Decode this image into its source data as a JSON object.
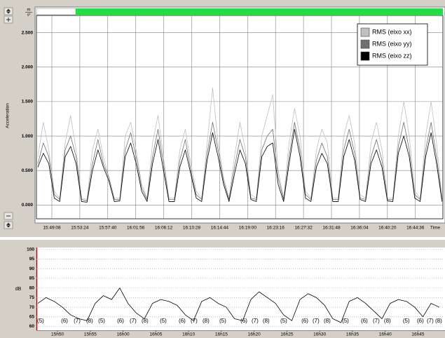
{
  "chart_data": [
    {
      "type": "line",
      "y_label": "Acceleration",
      "unit_numerator": "m",
      "unit_denominator": "s²",
      "x_end_label": "Time",
      "xlim": [
        56807,
        60528
      ],
      "ylim": [
        -0.2,
        2.75
      ],
      "grid": "both",
      "grid_style": "solid",
      "legend_position": "top-right",
      "xticks": [
        {
          "value": 56948,
          "label": "15:49:08"
        },
        {
          "value": 57204,
          "label": "15:53:24"
        },
        {
          "value": 57460,
          "label": "15:57:40"
        },
        {
          "value": 57716,
          "label": "16:01:56"
        },
        {
          "value": 57972,
          "label": "16:06:12"
        },
        {
          "value": 58228,
          "label": "16:10:28"
        },
        {
          "value": 58484,
          "label": "16:14:44"
        },
        {
          "value": 58740,
          "label": "16:19:00"
        },
        {
          "value": 58996,
          "label": "16:23:16"
        },
        {
          "value": 59252,
          "label": "16:27:32"
        },
        {
          "value": 59508,
          "label": "16:31:48"
        },
        {
          "value": 59764,
          "label": "16:36:04"
        },
        {
          "value": 60020,
          "label": "16:40:20"
        },
        {
          "value": 60276,
          "label": "16:44:36"
        }
      ],
      "yticks": [
        {
          "value": 0,
          "label": "0.000"
        },
        {
          "value": 0.5,
          "label": "0.500"
        },
        {
          "value": 1,
          "label": "1.000"
        },
        {
          "value": 1.5,
          "label": "1.500"
        },
        {
          "value": 2,
          "label": "2.000"
        },
        {
          "value": 2.5,
          "label": "2.500"
        }
      ],
      "x": [
        56820,
        56870,
        56920,
        56970,
        57020,
        57070,
        57120,
        57170,
        57220,
        57270,
        57320,
        57370,
        57420,
        57470,
        57520,
        57570,
        57620,
        57670,
        57720,
        57770,
        57820,
        57870,
        57920,
        57970,
        58020,
        58070,
        58120,
        58170,
        58220,
        58270,
        58320,
        58370,
        58420,
        58470,
        58520,
        58570,
        58620,
        58670,
        58720,
        58770,
        58820,
        58870,
        58920,
        58970,
        59020,
        59070,
        59120,
        59170,
        59220,
        59270,
        59320,
        59370,
        59420,
        59470,
        59520,
        59570,
        59620,
        59670,
        59720,
        59770,
        59820,
        59870,
        59920,
        59970,
        60020,
        60070,
        60120,
        60170,
        60220,
        60270,
        60320,
        60370,
        60420,
        60470,
        60520
      ],
      "series": [
        {
          "name": "RMS (eixo xx)",
          "color": "#c0c0c0",
          "values": [
            0.7,
            1.2,
            0.8,
            0.2,
            0.1,
            0.9,
            1.3,
            0.8,
            0.1,
            0.08,
            0.8,
            1.1,
            0.7,
            0.4,
            0.1,
            0.1,
            1.0,
            1.2,
            0.8,
            0.3,
            0.1,
            0.9,
            1.3,
            0.7,
            0.1,
            0.1,
            0.8,
            1.1,
            0.6,
            0.2,
            0.1,
            0.9,
            1.7,
            0.9,
            0.4,
            0.1,
            0.7,
            1.2,
            0.8,
            0.15,
            0.1,
            1.0,
            1.3,
            1.6,
            0.5,
            0.1,
            0.9,
            1.4,
            1.0,
            0.2,
            0.1,
            0.8,
            1.1,
            0.9,
            0.1,
            0.1,
            1.0,
            1.3,
            0.9,
            0.15,
            0.1,
            0.9,
            1.2,
            0.8,
            0.1,
            0.1,
            1.0,
            1.5,
            1.0,
            0.2,
            0.1,
            1.0,
            1.5,
            0.9,
            0.1
          ]
        },
        {
          "name": "RMS (eixo yy)",
          "color": "#707070",
          "values": [
            0.6,
            0.9,
            0.7,
            0.15,
            0.08,
            0.8,
            1.0,
            0.7,
            0.08,
            0.06,
            0.6,
            0.95,
            0.6,
            0.4,
            0.08,
            0.08,
            0.8,
            1.05,
            0.7,
            0.25,
            0.08,
            0.7,
            1.1,
            0.6,
            0.08,
            0.08,
            0.65,
            0.95,
            0.5,
            0.15,
            0.08,
            0.75,
            1.2,
            0.8,
            0.35,
            0.08,
            0.55,
            0.95,
            0.7,
            0.1,
            0.08,
            0.8,
            1.0,
            1.1,
            0.4,
            0.08,
            0.7,
            1.2,
            0.8,
            0.15,
            0.08,
            0.65,
            0.9,
            0.7,
            0.08,
            0.08,
            0.8,
            1.1,
            0.75,
            0.1,
            0.08,
            0.7,
            0.95,
            0.65,
            0.08,
            0.08,
            0.85,
            1.2,
            0.8,
            0.15,
            0.08,
            0.8,
            1.2,
            0.7,
            0.08
          ]
        },
        {
          "name": "RMS (eixo zz)",
          "color": "#000000",
          "values": [
            0.55,
            0.75,
            0.6,
            0.1,
            0.05,
            0.7,
            0.85,
            0.6,
            0.05,
            0.04,
            0.5,
            0.8,
            0.55,
            0.35,
            0.05,
            0.06,
            0.7,
            0.9,
            0.6,
            0.2,
            0.05,
            0.6,
            0.95,
            0.5,
            0.05,
            0.05,
            0.55,
            0.8,
            0.45,
            0.1,
            0.05,
            0.65,
            1.05,
            0.7,
            0.3,
            0.05,
            0.45,
            0.8,
            0.6,
            0.08,
            0.05,
            0.7,
            0.85,
            0.9,
            0.3,
            0.05,
            0.6,
            1.1,
            0.7,
            0.1,
            0.05,
            0.55,
            0.75,
            0.6,
            0.05,
            0.05,
            0.7,
            0.95,
            0.65,
            0.08,
            0.05,
            0.6,
            0.8,
            0.55,
            0.06,
            0.05,
            0.75,
            1.0,
            0.7,
            0.1,
            0.05,
            0.7,
            1.05,
            0.6,
            0.05
          ]
        }
      ]
    },
    {
      "type": "line",
      "y_label": "dB",
      "xlim": [
        56807,
        60528
      ],
      "ylim": [
        58,
        101
      ],
      "grid": "y",
      "grid_style": "dotted",
      "color": "#000000",
      "xticks": [
        {
          "value": 57000,
          "label": "15h50"
        },
        {
          "value": 57300,
          "label": "15h55"
        },
        {
          "value": 57600,
          "label": "16h00"
        },
        {
          "value": 57900,
          "label": "16h05"
        },
        {
          "value": 58200,
          "label": "16h10"
        },
        {
          "value": 58500,
          "label": "16h15"
        },
        {
          "value": 58800,
          "label": "16h20"
        },
        {
          "value": 59100,
          "label": "16h25"
        },
        {
          "value": 59400,
          "label": "16h30"
        },
        {
          "value": 59700,
          "label": "16h35"
        },
        {
          "value": 60000,
          "label": "16h40"
        },
        {
          "value": 60300,
          "label": "16h45"
        }
      ],
      "yticks": [
        60,
        65,
        70,
        75,
        80,
        85,
        90,
        95,
        100
      ],
      "x": [
        56820,
        56895,
        56970,
        57045,
        57120,
        57195,
        57270,
        57345,
        57420,
        57495,
        57570,
        57645,
        57720,
        57795,
        57870,
        57945,
        58020,
        58095,
        58170,
        58245,
        58320,
        58395,
        58470,
        58545,
        58620,
        58695,
        58770,
        58845,
        58920,
        58995,
        59070,
        59145,
        59220,
        59295,
        59370,
        59445,
        59520,
        59595,
        59670,
        59745,
        59820,
        59895,
        59970,
        60045,
        60120,
        60195,
        60270,
        60345,
        60420,
        60495
      ],
      "values": [
        72,
        75,
        73,
        70,
        66,
        64,
        63,
        72,
        76,
        74,
        80,
        72,
        67,
        64,
        72,
        74,
        73,
        71,
        66,
        63,
        73,
        75,
        72,
        70,
        64,
        63,
        74,
        78,
        75,
        72,
        66,
        63,
        74,
        77,
        75,
        71,
        64,
        62,
        73,
        75,
        72,
        68,
        64,
        72,
        74,
        73,
        70,
        65,
        72,
        70
      ],
      "annotations": [
        {
          "text": "(5)",
          "x": 56845
        },
        {
          "text": "(6)",
          "x": 57064
        },
        {
          "text": "(7)",
          "x": 57179
        },
        {
          "text": "(8)",
          "x": 57294
        },
        {
          "text": "(5)",
          "x": 57404
        },
        {
          "text": "(6)",
          "x": 57577
        },
        {
          "text": "(7)",
          "x": 57692
        },
        {
          "text": "(8)",
          "x": 57801
        },
        {
          "text": "(5)",
          "x": 57968
        },
        {
          "text": "(6)",
          "x": 58141
        },
        {
          "text": "(7)",
          "x": 58250
        },
        {
          "text": "(8)",
          "x": 58359
        },
        {
          "text": "(5)",
          "x": 58513
        },
        {
          "text": "(6)",
          "x": 58706
        },
        {
          "text": "(7)",
          "x": 58808
        },
        {
          "text": "(8)",
          "x": 58910
        },
        {
          "text": "(5)",
          "x": 59071
        },
        {
          "text": "(6)",
          "x": 59264
        },
        {
          "text": "(7)",
          "x": 59366
        },
        {
          "text": "(8)",
          "x": 59469
        },
        {
          "text": "(5)",
          "x": 59636
        },
        {
          "text": "(6)",
          "x": 59809
        },
        {
          "text": "(7)",
          "x": 59918
        },
        {
          "text": "(8)",
          "x": 60020
        },
        {
          "text": "(5)",
          "x": 60193
        },
        {
          "text": "(6)",
          "x": 60322
        },
        {
          "text": "(7)",
          "x": 60412
        },
        {
          "text": "(8)",
          "x": 60489
        }
      ]
    }
  ]
}
